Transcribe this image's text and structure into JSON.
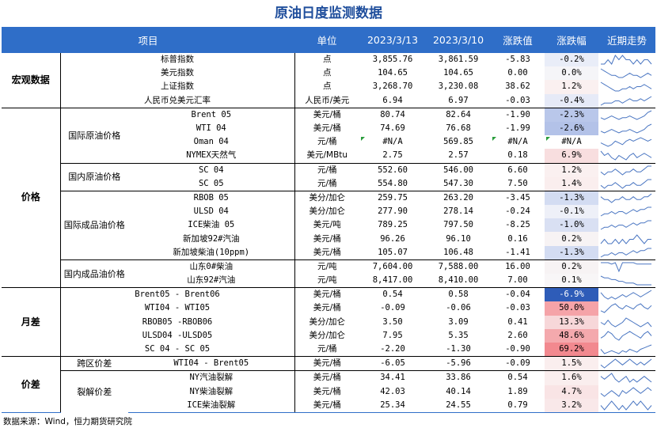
{
  "title": "原油日度监测数据",
  "headers": {
    "item": "项目",
    "unit": "单位",
    "d1": "2023/3/13",
    "d2": "2023/3/10",
    "chg": "涨跌值",
    "pct": "涨跌幅",
    "trend": "近期走势"
  },
  "groups": [
    {
      "name": "宏观数据",
      "rows": [
        {
          "sub": "",
          "item": "标普指数",
          "unit": "点",
          "v1": "3,855.76",
          "v2": "3,861.59",
          "chg": "-5.83",
          "pct": "-0.2%",
          "bg": "#e9edf8",
          "spark": [
            5,
            5,
            6,
            5,
            7,
            6,
            7,
            6,
            6,
            5,
            6,
            5,
            6,
            6,
            5
          ]
        },
        {
          "sub": "",
          "item": "美元指数",
          "unit": "点",
          "v1": "104.65",
          "v2": "104.65",
          "chg": "0.00",
          "pct": "0.0%",
          "bg": "#f5f5f8",
          "spark": [
            9,
            8,
            7,
            6,
            6,
            5,
            5,
            6,
            7,
            6,
            6,
            5,
            6,
            7,
            6
          ]
        },
        {
          "sub": "",
          "item": "上证指数",
          "unit": "点",
          "v1": "3,268.70",
          "v2": "3,230.08",
          "chg": "38.62",
          "pct": "1.2%",
          "bg": "#faf0f0",
          "spark": [
            9,
            8,
            7,
            6,
            5,
            5,
            6,
            6,
            7,
            6,
            7,
            7,
            8,
            7,
            6
          ]
        },
        {
          "sub": "",
          "item": "人民币兑美元汇率",
          "unit": "人民币/美元",
          "v1": "6.94",
          "v2": "6.97",
          "chg": "-0.03",
          "pct": "-0.4%",
          "bg": "#e6eaf7",
          "spark": [
            5,
            6,
            6,
            6,
            7,
            7,
            6,
            7,
            8,
            7,
            7,
            8,
            7,
            8,
            9
          ]
        }
      ]
    },
    {
      "name": "价格",
      "rows": [
        {
          "sub": "国际原油价格",
          "item": "Brent 05",
          "unit": "美元/桶",
          "v1": "80.74",
          "v2": "82.64",
          "chg": "-1.90",
          "pct": "-2.3%",
          "bg": "#b9c7ea",
          "spark": [
            6,
            5,
            6,
            7,
            6,
            5,
            6,
            6,
            7,
            6,
            5,
            6,
            7,
            9,
            10
          ]
        },
        {
          "sub": "",
          "item": "WTI 04",
          "unit": "美元/桶",
          "v1": "74.69",
          "v2": "76.68",
          "chg": "-1.99",
          "pct": "-2.6%",
          "bg": "#b3c2e8",
          "spark": [
            6,
            5,
            6,
            7,
            6,
            5,
            6,
            6,
            7,
            6,
            5,
            6,
            7,
            9,
            10
          ]
        },
        {
          "sub": "",
          "item": "Oman 04",
          "unit": "元/桶",
          "v1": "#N/A",
          "v2": "569.85",
          "chg": "#N/A",
          "pct": "#N/A",
          "bg": "#ffffff",
          "spark": [
            7,
            6,
            5,
            6,
            8,
            7,
            6,
            8,
            9,
            8,
            9,
            10,
            9,
            8,
            9
          ],
          "flag": true
        },
        {
          "sub": "",
          "item": "NYMEX天然气",
          "unit": "美元/MBtu",
          "v1": "2.75",
          "v2": "2.57",
          "chg": "0.18",
          "pct": "6.9%",
          "bg": "#f8dedf",
          "spark": [
            10,
            8,
            9,
            7,
            6,
            8,
            7,
            6,
            8,
            9,
            7,
            8,
            9,
            8,
            7
          ]
        },
        {
          "sub": "国内原油价格",
          "item": "SC 04",
          "unit": "元/桶",
          "v1": "552.60",
          "v2": "546.00",
          "chg": "6.60",
          "pct": "1.2%",
          "bg": "#faf0f0",
          "spark": [
            6,
            5,
            6,
            6,
            7,
            6,
            5,
            6,
            6,
            7,
            6,
            6,
            7,
            8,
            8
          ]
        },
        {
          "sub": "",
          "item": "SC 05",
          "unit": "元/桶",
          "v1": "554.80",
          "v2": "547.30",
          "chg": "7.50",
          "pct": "1.4%",
          "bg": "#faeeee",
          "spark": [
            6,
            5,
            6,
            6,
            7,
            6,
            5,
            6,
            6,
            7,
            6,
            6,
            7,
            8,
            8
          ]
        },
        {
          "sub": "国际成品油价格",
          "item": "RBOB 05",
          "unit": "美分/加仑",
          "v1": "259.75",
          "v2": "263.20",
          "chg": "-3.45",
          "pct": "-1.3%",
          "bg": "#d3dcf2",
          "spark": [
            7,
            6,
            6,
            5,
            6,
            6,
            7,
            6,
            6,
            7,
            6,
            6,
            7,
            7,
            8
          ]
        },
        {
          "sub": "",
          "item": "ULSD 04",
          "unit": "美分/加仑",
          "v1": "277.90",
          "v2": "278.14",
          "chg": "-0.24",
          "pct": "-0.1%",
          "bg": "#eef0f8",
          "spark": [
            5,
            6,
            6,
            7,
            6,
            7,
            7,
            6,
            7,
            8,
            7,
            8,
            8,
            9,
            9
          ]
        },
        {
          "sub": "",
          "item": "ICE柴油 05",
          "unit": "美元/吨",
          "v1": "789.25",
          "v2": "797.50",
          "chg": "-8.25",
          "pct": "-1.0%",
          "bg": "#d9e0f3",
          "spark": [
            5,
            6,
            6,
            7,
            6,
            7,
            7,
            6,
            7,
            8,
            7,
            8,
            8,
            9,
            9
          ]
        },
        {
          "sub": "",
          "item": "新加坡92#汽油",
          "unit": "美元/桶",
          "v1": "96.26",
          "v2": "96.10",
          "chg": "0.16",
          "pct": "0.2%",
          "bg": "#f7f3f4",
          "spark": [
            6,
            7,
            6,
            6,
            7,
            6,
            7,
            6,
            7,
            7,
            8,
            7,
            6,
            7,
            7
          ]
        },
        {
          "sub": "",
          "item": "新加坡柴油(10ppm)",
          "unit": "美元/桶",
          "v1": "105.07",
          "v2": "106.48",
          "chg": "-1.41",
          "pct": "-1.3%",
          "bg": "#d3dcf2",
          "spark": [
            5,
            6,
            6,
            7,
            6,
            7,
            7,
            6,
            7,
            8,
            7,
            8,
            8,
            9,
            9
          ]
        },
        {
          "sub": "国内成品油价格",
          "item": "山东0#柴油",
          "unit": "元/吨",
          "v1": "7,604.00",
          "v2": "7,588.00",
          "chg": "16.00",
          "pct": "0.2%",
          "bg": "#f7f3f4",
          "spark": [
            9,
            9,
            9,
            8,
            9,
            3,
            9,
            9,
            9,
            9,
            8,
            8,
            8,
            8,
            8
          ]
        },
        {
          "sub": "",
          "item": "山东92#汽油",
          "unit": "元/吨",
          "v1": "8,417.00",
          "v2": "8,410.00",
          "chg": "7.00",
          "pct": "0.1%",
          "bg": "#f8f6f7",
          "spark": [
            10,
            9,
            9,
            8,
            8,
            7,
            7,
            6,
            6,
            6,
            5,
            5,
            5,
            5,
            5
          ]
        }
      ]
    },
    {
      "name": "月差",
      "rows": [
        {
          "sub": "",
          "item": "Brent05 - Brent06",
          "unit": "美元/桶",
          "v1": "0.54",
          "v2": "0.58",
          "chg": "-0.04",
          "pct": "-6.9%",
          "bg": "#2e5cb8",
          "light": true,
          "spark": [
            8,
            6,
            5,
            6,
            5,
            6,
            7,
            6,
            7,
            8,
            7,
            6,
            7,
            8,
            9
          ]
        },
        {
          "sub": "",
          "item": "WTI04 - WTI05",
          "unit": "美元/桶",
          "v1": "-0.09",
          "v2": "-0.06",
          "chg": "-0.03",
          "pct": "50.0%",
          "bg": "#f5a3a8",
          "spark": [
            5,
            4,
            6,
            8,
            9,
            7,
            6,
            8,
            7,
            6,
            8,
            9,
            7,
            6,
            8
          ]
        },
        {
          "sub": "",
          "item": "RBOB05 -RBOB06",
          "unit": "美分/加仑",
          "v1": "3.50",
          "v2": "3.09",
          "chg": "0.41",
          "pct": "13.3%",
          "bg": "#f7d7d9",
          "spark": [
            7,
            6,
            8,
            6,
            5,
            6,
            7,
            9,
            8,
            7,
            6,
            5,
            6,
            7,
            5
          ]
        },
        {
          "sub": "",
          "item": "ULSD04 -ULSD05",
          "unit": "美分/加仑",
          "v1": "7.95",
          "v2": "5.35",
          "chg": "2.60",
          "pct": "48.6%",
          "bg": "#f4a9ad",
          "spark": [
            6,
            7,
            9,
            8,
            6,
            5,
            7,
            8,
            9,
            8,
            7,
            6,
            8,
            9,
            7
          ]
        },
        {
          "sub": "",
          "item": "SC 04 - SC 05",
          "unit": "元/桶",
          "v1": "-2.20",
          "v2": "-1.30",
          "chg": "-0.90",
          "pct": "69.2%",
          "bg": "#f2898f",
          "spark": [
            8,
            5,
            6,
            7,
            6,
            5,
            7,
            6,
            8,
            7,
            6,
            8,
            9,
            10,
            11
          ]
        }
      ]
    },
    {
      "name": "价差",
      "rows": [
        {
          "sub": "跨区价差",
          "item": "WTI04 - Brent05",
          "unit": "美元/桶",
          "v1": "-6.05",
          "v2": "-5.96",
          "chg": "-0.09",
          "pct": "1.5%",
          "bg": "#faeeee",
          "spark": [
            6,
            5,
            6,
            7,
            8,
            7,
            6,
            7,
            8,
            7,
            6,
            7,
            6,
            7,
            8
          ]
        },
        {
          "sub": "裂解价差",
          "item": "NY汽油裂解",
          "unit": "美元/桶",
          "v1": "34.41",
          "v2": "33.86",
          "chg": "0.54",
          "pct": "1.6%",
          "bg": "#faeeee",
          "spark": [
            8,
            7,
            8,
            9,
            7,
            6,
            7,
            8,
            6,
            7,
            6,
            7,
            8,
            7,
            6
          ]
        },
        {
          "sub": "",
          "item": "NY柴油裂解",
          "unit": "美元/桶",
          "v1": "42.03",
          "v2": "40.14",
          "chg": "1.89",
          "pct": "4.7%",
          "bg": "#f9e4e5",
          "spark": [
            7,
            6,
            7,
            8,
            7,
            6,
            8,
            7,
            8,
            9,
            8,
            7,
            8,
            9,
            8
          ]
        },
        {
          "sub": "",
          "item": "ICE柴油裂解",
          "unit": "美元/桶",
          "v1": "25.34",
          "v2": "24.55",
          "chg": "0.79",
          "pct": "3.2%",
          "bg": "#f9e8e9",
          "spark": [
            8,
            7,
            8,
            9,
            8,
            7,
            8,
            7,
            8,
            9,
            8,
            9,
            8,
            7,
            8
          ]
        }
      ]
    }
  ],
  "footer": "数据来源：Wind，恒力期货研究院",
  "colors": {
    "header": "#2f6ec8",
    "title": "#1f4e9c",
    "spark": "#4a76c2"
  }
}
